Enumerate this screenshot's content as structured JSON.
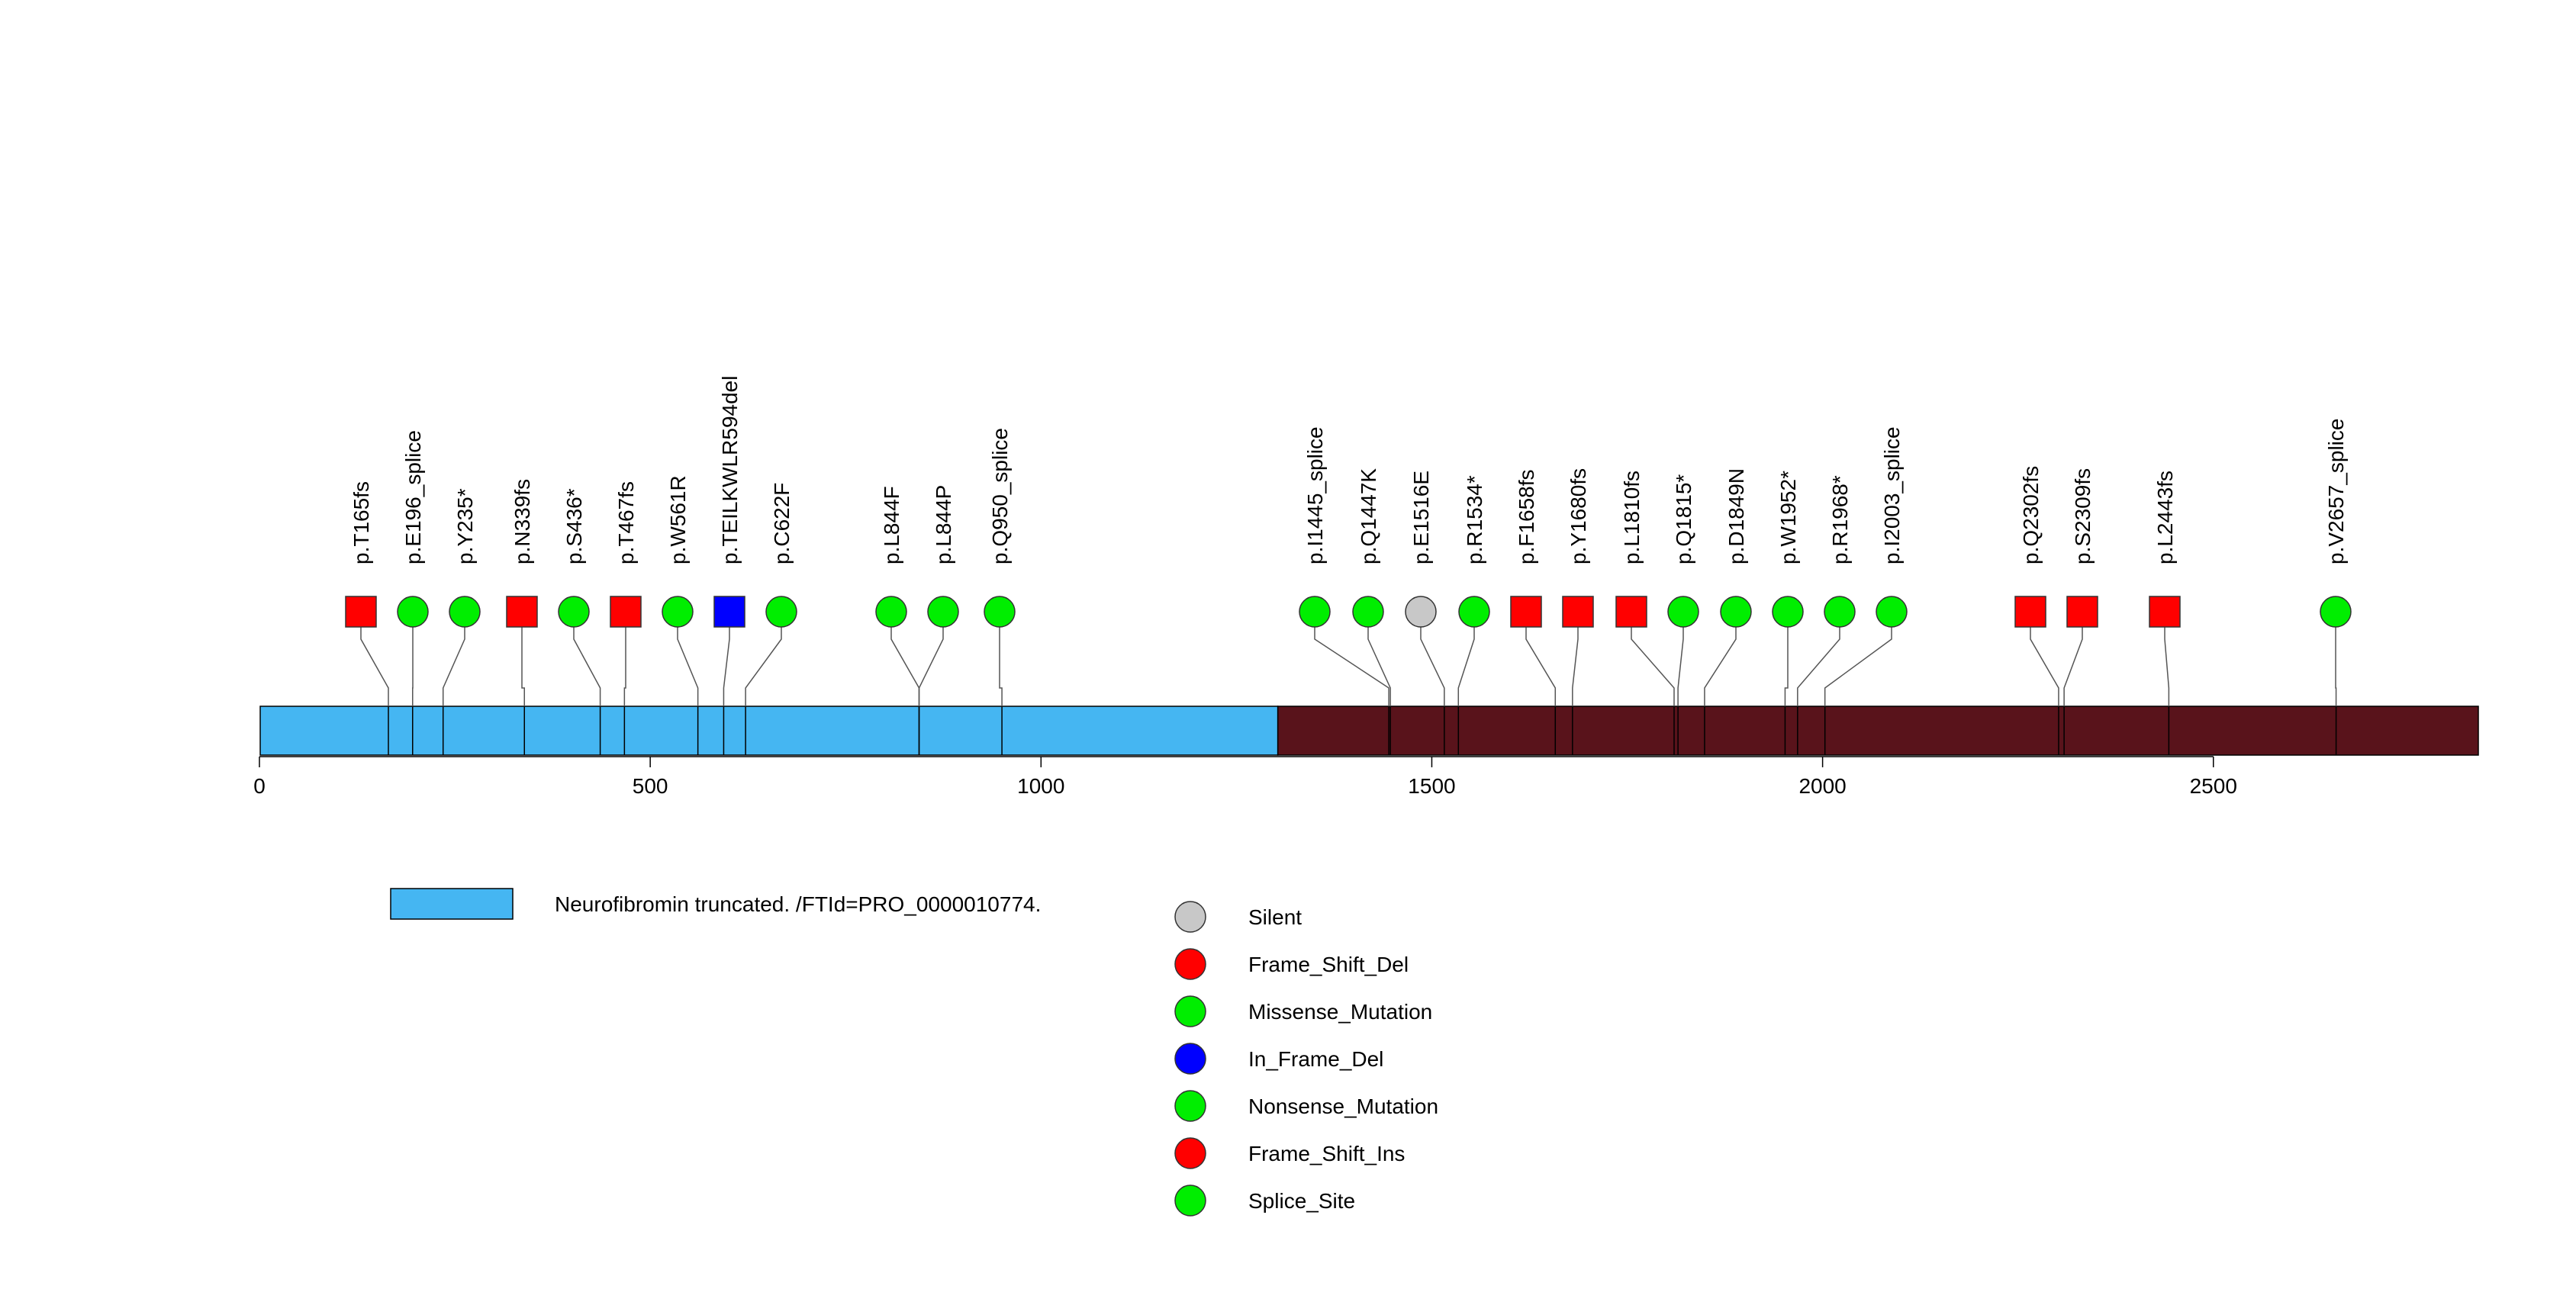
{
  "chart_data": {
    "type": "lollipop",
    "protein_length": 2839,
    "xlim": [
      0,
      2839
    ],
    "x_ticks": [
      0,
      500,
      1000,
      1500,
      2000,
      2500
    ],
    "x_tick_labels": [
      "0",
      "500",
      "1000",
      "1500",
      "2000",
      "2500"
    ],
    "domains": [
      {
        "name": "Neurofibromin truncated. /FTId=PRO_0000010774.",
        "start": 1,
        "end": 1303,
        "color": "#45b6f2"
      },
      {
        "name": "",
        "start": 1303,
        "end": 2839,
        "color": "#59131b"
      }
    ],
    "mutations": [
      {
        "label": "p.T165fs",
        "pos": 165,
        "type": "Frame_Shift_Del"
      },
      {
        "label": "p.E196_splice",
        "pos": 196,
        "type": "Splice_Site"
      },
      {
        "label": "p.Y235*",
        "pos": 235,
        "type": "Nonsense_Mutation"
      },
      {
        "label": "p.N339fs",
        "pos": 339,
        "type": "Frame_Shift_Ins"
      },
      {
        "label": "p.S436*",
        "pos": 436,
        "type": "Nonsense_Mutation"
      },
      {
        "label": "p.T467fs",
        "pos": 467,
        "type": "Frame_Shift_Del"
      },
      {
        "label": "p.W561R",
        "pos": 561,
        "type": "Missense_Mutation"
      },
      {
        "label": "p.TEILKWLR594del",
        "pos": 594,
        "type": "In_Frame_Del"
      },
      {
        "label": "p.C622F",
        "pos": 622,
        "type": "Missense_Mutation"
      },
      {
        "label": "p.L844F",
        "pos": 844,
        "type": "Missense_Mutation"
      },
      {
        "label": "p.L844P",
        "pos": 844,
        "type": "Missense_Mutation"
      },
      {
        "label": "p.Q950_splice",
        "pos": 950,
        "type": "Splice_Site"
      },
      {
        "label": "p.I1445_splice",
        "pos": 1445,
        "type": "Splice_Site"
      },
      {
        "label": "p.Q1447K",
        "pos": 1447,
        "type": "Missense_Mutation"
      },
      {
        "label": "p.E1516E",
        "pos": 1516,
        "type": "Silent"
      },
      {
        "label": "p.R1534*",
        "pos": 1534,
        "type": "Nonsense_Mutation"
      },
      {
        "label": "p.F1658fs",
        "pos": 1658,
        "type": "Frame_Shift_Del"
      },
      {
        "label": "p.Y1680fs",
        "pos": 1680,
        "type": "Frame_Shift_Del"
      },
      {
        "label": "p.L1810fs",
        "pos": 1810,
        "type": "Frame_Shift_Del"
      },
      {
        "label": "p.Q1815*",
        "pos": 1815,
        "type": "Nonsense_Mutation"
      },
      {
        "label": "p.D1849N",
        "pos": 1849,
        "type": "Missense_Mutation"
      },
      {
        "label": "p.W1952*",
        "pos": 1952,
        "type": "Nonsense_Mutation"
      },
      {
        "label": "p.R1968*",
        "pos": 1968,
        "type": "Nonsense_Mutation"
      },
      {
        "label": "p.I2003_splice",
        "pos": 2003,
        "type": "Splice_Site"
      },
      {
        "label": "p.Q2302fs",
        "pos": 2302,
        "type": "Frame_Shift_Del"
      },
      {
        "label": "p.S2309fs",
        "pos": 2309,
        "type": "Frame_Shift_Del"
      },
      {
        "label": "p.L2443fs",
        "pos": 2443,
        "type": "Frame_Shift_Del"
      },
      {
        "label": "p.V2657_splice",
        "pos": 2657,
        "type": "Splice_Site"
      }
    ],
    "mutation_types": [
      {
        "name": "Silent",
        "color": "#c8c8c8",
        "shape": "circle"
      },
      {
        "name": "Frame_Shift_Del",
        "color": "#ff0000",
        "shape": "square"
      },
      {
        "name": "Missense_Mutation",
        "color": "#00ee00",
        "shape": "circle"
      },
      {
        "name": "In_Frame_Del",
        "color": "#0000ff",
        "shape": "square"
      },
      {
        "name": "Nonsense_Mutation",
        "color": "#00ee00",
        "shape": "circle"
      },
      {
        "name": "Frame_Shift_Ins",
        "color": "#ff0000",
        "shape": "square"
      },
      {
        "name": "Splice_Site",
        "color": "#00ee00",
        "shape": "circle"
      }
    ],
    "legend_domains": [
      "Neurofibromin truncated. /FTId=PRO_0000010774."
    ]
  }
}
